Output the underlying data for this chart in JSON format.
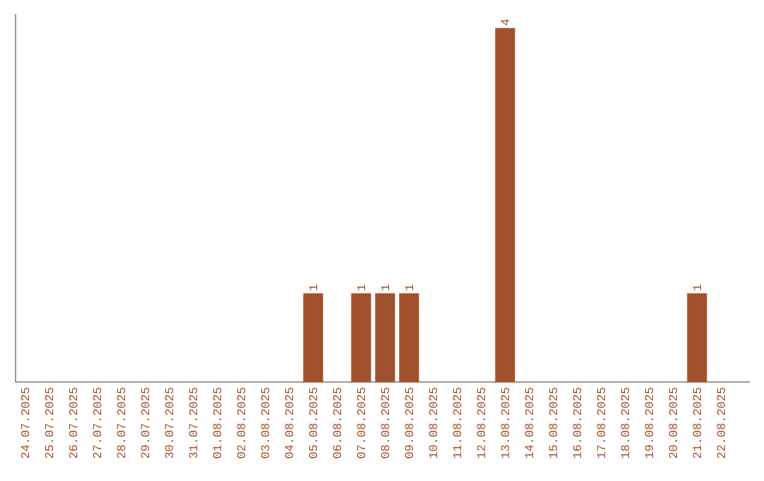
{
  "chart_data": {
    "type": "bar",
    "categories": [
      "24.07.2025",
      "25.07.2025",
      "26.07.2025",
      "27.07.2025",
      "28.07.2025",
      "29.07.2025",
      "30.07.2025",
      "31.07.2025",
      "01.08.2025",
      "02.08.2025",
      "03.08.2025",
      "04.08.2025",
      "05.08.2025",
      "06.08.2025",
      "07.08.2025",
      "08.08.2025",
      "09.08.2025",
      "10.08.2025",
      "11.08.2025",
      "12.08.2025",
      "13.08.2025",
      "14.08.2025",
      "15.08.2025",
      "16.08.2025",
      "17.08.2025",
      "18.08.2025",
      "19.08.2025",
      "20.08.2025",
      "21.08.2025",
      "22.08.2025"
    ],
    "values": [
      null,
      null,
      null,
      null,
      null,
      null,
      null,
      null,
      null,
      null,
      null,
      null,
      1,
      null,
      1,
      1,
      1,
      null,
      null,
      null,
      4,
      null,
      null,
      null,
      null,
      null,
      null,
      null,
      1,
      null
    ],
    "data_labels": true,
    "color": "#a0522d",
    "ylim": [
      0,
      4.16
    ]
  }
}
